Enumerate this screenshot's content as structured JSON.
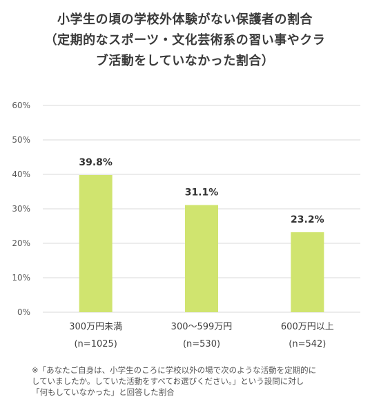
{
  "chart_data": {
    "type": "bar",
    "title_lines": [
      "小学生の頃の学校外体験がない保護者の割合",
      "（定期的なスポーツ・文化芸術系の習い事やクラ",
      "ブ活動をしていなかった割合）"
    ],
    "categories": [
      {
        "label": "300万円未満",
        "sub": "(n=1025)"
      },
      {
        "label": "300～599万円",
        "sub": "(n=530)"
      },
      {
        "label": "600万円以上",
        "sub": "(n=542)"
      }
    ],
    "values": [
      39.8,
      31.1,
      23.2
    ],
    "value_labels": [
      "39.8%",
      "31.1%",
      "23.2%"
    ],
    "ylim": [
      0,
      60
    ],
    "yticks": [
      "0%",
      "10%",
      "20%",
      "30%",
      "40%",
      "50%",
      "60%"
    ],
    "grid": true,
    "bar_color": "#d0e46f",
    "grid_color": "#d9d9d9"
  },
  "footnote": {
    "lines": [
      "※「あなたご自身は、小学生のころに学校以外の場で次のような活動を定期的に",
      "していましたか。していた活動をすべてお選びください。」という設問に対し",
      "「何もしていなかった」と回答した割合"
    ]
  }
}
